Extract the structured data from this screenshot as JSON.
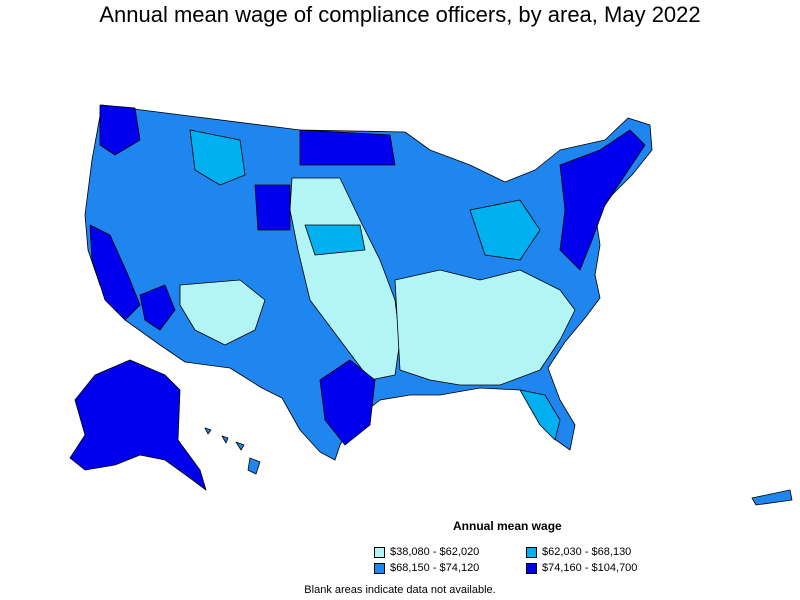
{
  "title": "Annual mean wage of compliance officers, by area, May 2022",
  "legend": {
    "title": "Annual mean wage",
    "items": [
      {
        "label": "$38,080 - $62,020",
        "color": "#b3f5f5"
      },
      {
        "label": "$62,030 - $68,130",
        "color": "#00b0f0"
      },
      {
        "label": "$68,150 - $74,120",
        "color": "#1f86ef"
      },
      {
        "label": "$74,160 - $104,700",
        "color": "#0000ee"
      }
    ]
  },
  "footnote": "Blank areas indicate data not available."
}
